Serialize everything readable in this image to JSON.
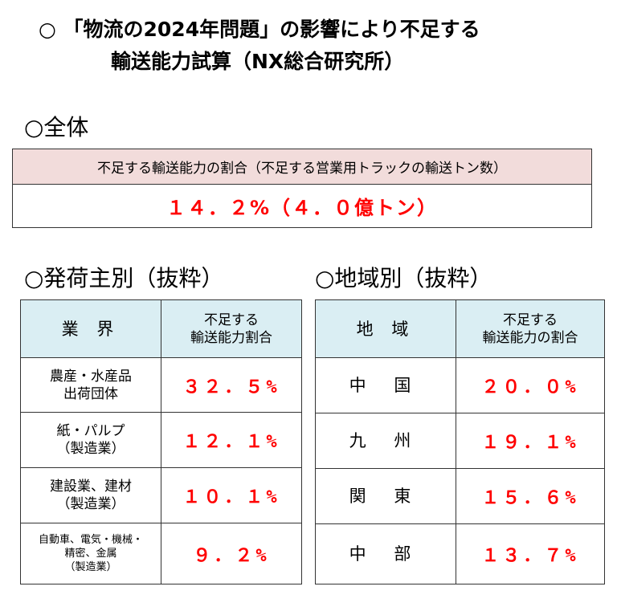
{
  "title": {
    "line1": "○ 「物流の2024年問題」の影響により不足する",
    "line2": "輸送能力試算（NX総合研究所）"
  },
  "overall": {
    "section_label": "○全体",
    "header": "不足する輸送能力の割合（不足する営業用トラックの輸送トン数）",
    "value": "１４．２%（４．０億トン）"
  },
  "industry": {
    "section_label": "○発荷主別（抜粋）",
    "col_headers": [
      "業 界",
      "不足する\n輸送能力割合"
    ],
    "rows": [
      {
        "name": "農産・水産品\n出荷団体",
        "value": "３２．５%"
      },
      {
        "name": "紙・パルプ\n（製造業）",
        "value": "１２．１%"
      },
      {
        "name": "建設業、建材\n（製造業）",
        "value": "１０．１%"
      },
      {
        "name": "自動車、電気・機械・\n精密、金属\n（製造業）",
        "value": "９．２%"
      }
    ]
  },
  "region": {
    "section_label": "○地域別（抜粋）",
    "col_headers": [
      "地 域",
      "不足する\n輸送能力の割合"
    ],
    "rows": [
      {
        "name": "中 国",
        "value": "２０．０%"
      },
      {
        "name": "九 州",
        "value": "１９．１%"
      },
      {
        "name": "関 東",
        "value": "１５．６%"
      },
      {
        "name": "中 部",
        "value": "１３．７%"
      }
    ]
  },
  "colors": {
    "header_pink": "#f2dcdb",
    "header_blue": "#daeef3",
    "value_red": "#ff0000"
  }
}
